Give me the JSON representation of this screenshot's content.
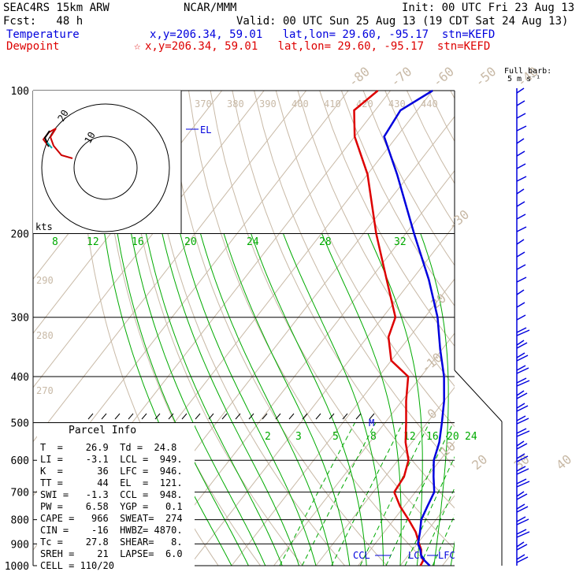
{
  "header": {
    "model": "SEAC4RS 15km ARW",
    "center": "NCAR/MMM",
    "init": "Init: 00 UTC Fri 23 Aug 13",
    "fcst": "Fcst:   48 h",
    "valid": "Valid: 00 UTC Sun 25 Aug 13 (19 CDT Sat 24 Aug 13)",
    "temp_label": "Temperature",
    "temp_loc": "x,y=206.34, 59.01   lat,lon= 29.60, -95.17  stn=KEFD",
    "dew_label": "Dewpoint",
    "dew_loc": "x,y=206.34, 59.01   lat,lon= 29.60, -95.17  stn=KEFD",
    "dew_star": "☆"
  },
  "colors": {
    "temperature": "#0000dd",
    "dewpoint": "#dd0000",
    "isotherm": "#c8b9a6",
    "mixing": "#00aa00",
    "grid": "#000000"
  },
  "chart_data": {
    "type": "line",
    "title": "",
    "xlabel": "",
    "ylabel": "",
    "pressure_levels": [
      100,
      200,
      300,
      400,
      500,
      600,
      700,
      800,
      900,
      1000
    ],
    "isotherm_labels": [
      -80,
      -70,
      -60,
      -50,
      -40,
      -30,
      -20,
      -10,
      0,
      10,
      20,
      30,
      40
    ],
    "theta_labels": [
      370,
      380,
      390,
      400,
      410,
      420,
      430,
      440
    ],
    "theta_left_labels": [
      290,
      280,
      270
    ],
    "mixing_ratio_labels_upper": [
      "8",
      "12",
      "16",
      "20",
      "24",
      "28",
      "32"
    ],
    "mixing_ratio_labels_lower": [
      "2",
      "3",
      "5",
      "8",
      "12",
      "16",
      "20",
      "24"
    ],
    "series": [
      {
        "name": "Temperature",
        "points": [
          [
            1000,
            27
          ],
          [
            975,
            24.8
          ],
          [
            950,
            23
          ],
          [
            925,
            21.8
          ],
          [
            900,
            20.2
          ],
          [
            850,
            18.5
          ],
          [
            800,
            16.5
          ],
          [
            750,
            15.5
          ],
          [
            700,
            14.5
          ],
          [
            650,
            11.5
          ],
          [
            600,
            8.5
          ],
          [
            550,
            6.5
          ],
          [
            500,
            3.5
          ],
          [
            450,
            0
          ],
          [
            400,
            -4.5
          ],
          [
            350,
            -10.5
          ],
          [
            300,
            -17
          ],
          [
            250,
            -26
          ],
          [
            200,
            -38
          ],
          [
            150,
            -53
          ],
          [
            125,
            -63
          ],
          [
            110,
            -64
          ],
          [
            100,
            -60
          ]
        ]
      },
      {
        "name": "Dewpoint",
        "points": [
          [
            1000,
            24.8
          ],
          [
            975,
            24.5
          ],
          [
            950,
            23
          ],
          [
            925,
            22
          ],
          [
            900,
            20.5
          ],
          [
            850,
            17.5
          ],
          [
            800,
            13.5
          ],
          [
            750,
            9
          ],
          [
            700,
            5
          ],
          [
            650,
            4.5
          ],
          [
            600,
            2.5
          ],
          [
            550,
            -1.5
          ],
          [
            500,
            -5
          ],
          [
            450,
            -9
          ],
          [
            400,
            -13
          ],
          [
            370,
            -20
          ],
          [
            330,
            -25
          ],
          [
            300,
            -27
          ],
          [
            250,
            -36
          ],
          [
            200,
            -47
          ],
          [
            150,
            -60
          ],
          [
            125,
            -70
          ],
          [
            110,
            -75
          ],
          [
            100,
            -73
          ]
        ]
      }
    ],
    "annotations": {
      "el": "EL",
      "m": "M",
      "ccl": "CCL",
      "lcl": "LCL",
      "lfc": "LFC"
    },
    "hodograph": {
      "units": "kts",
      "rings": [
        "10",
        "20"
      ]
    },
    "wind_barbs": {
      "label_line1": "Full barb:",
      "label_line2": "5 m s⁻¹"
    }
  },
  "parcel_info": {
    "title": "Parcel Info",
    "rows": [
      "T  =    26.9  Td =  24.8",
      "LI =    -3.1  LCL =  949.",
      "K  =      36  LFC =  946.",
      "TT =      44  EL  =  121.",
      "SWI =   -1.3  CCL =  948.",
      "PW =    6.58  YGP =   0.1",
      "CAPE =   966  SWEAT=  274",
      "CIN =    -16  HWBZ= 4870.",
      "Tc =    27.8  SHEAR=   8.",
      "SREH =    21  LAPSE=  6.0",
      "CELL = 110/20"
    ]
  }
}
